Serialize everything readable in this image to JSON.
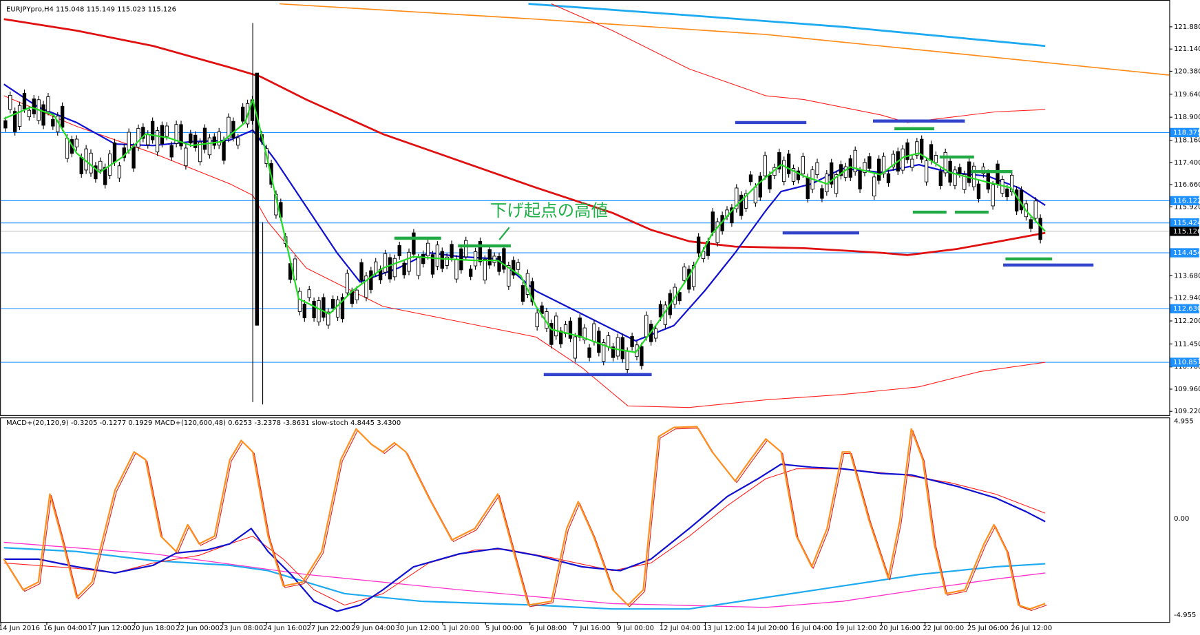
{
  "header": {
    "symbol_info": "EURJPYpro,H4  115.048 115.149 115.023 115.126"
  },
  "annotation": "下げ起点の高値",
  "price_axis": {
    "labels": [
      "121.880",
      "121.140",
      "120.380",
      "119.640",
      "118.900",
      "118.160",
      "117.400",
      "116.660",
      "115.920",
      "113.680",
      "112.940",
      "112.200",
      "111.450",
      "110.700",
      "109.960",
      "109.220"
    ],
    "markers": [
      "118.375",
      "116.122",
      "115.424",
      "115.126",
      "114.454",
      "112.630",
      "110.857"
    ]
  },
  "indicator_panel": {
    "header": "MACD+(20,120,9) -0.3205 -0.1277 0.1929  MACD+(120,600,48) 0.6253 -3.2378 -3.8631  slow-stoch 4.8445 3.4300",
    "axis_labels": [
      "4.955",
      "0.00",
      "-4.955"
    ]
  },
  "time_axis": {
    "labels": [
      "14 Jun 2016",
      "16 Jun 04:00",
      "17 Jun 12:00",
      "20 Jun 18:00",
      "22 Jun 00:00",
      "23 Jun 08:00",
      "24 Jun 16:00",
      "27 Jun 22:00",
      "29 Jun 04:00",
      "30 Jun 12:00",
      "1 Jul 20:00",
      "5 Jul 00:00",
      "6 Jul 08:00",
      "7 Jul 16:00",
      "9 Jul 00:00",
      "12 Jul 04:00",
      "13 Jul 12:00",
      "14 Jul 20:00",
      "16 Jul 04:00",
      "19 Jul 12:00",
      "20 Jul 16:00",
      "22 Jul 00:00",
      "25 Jul 06:00",
      "26 Jul 12:00"
    ]
  }
}
